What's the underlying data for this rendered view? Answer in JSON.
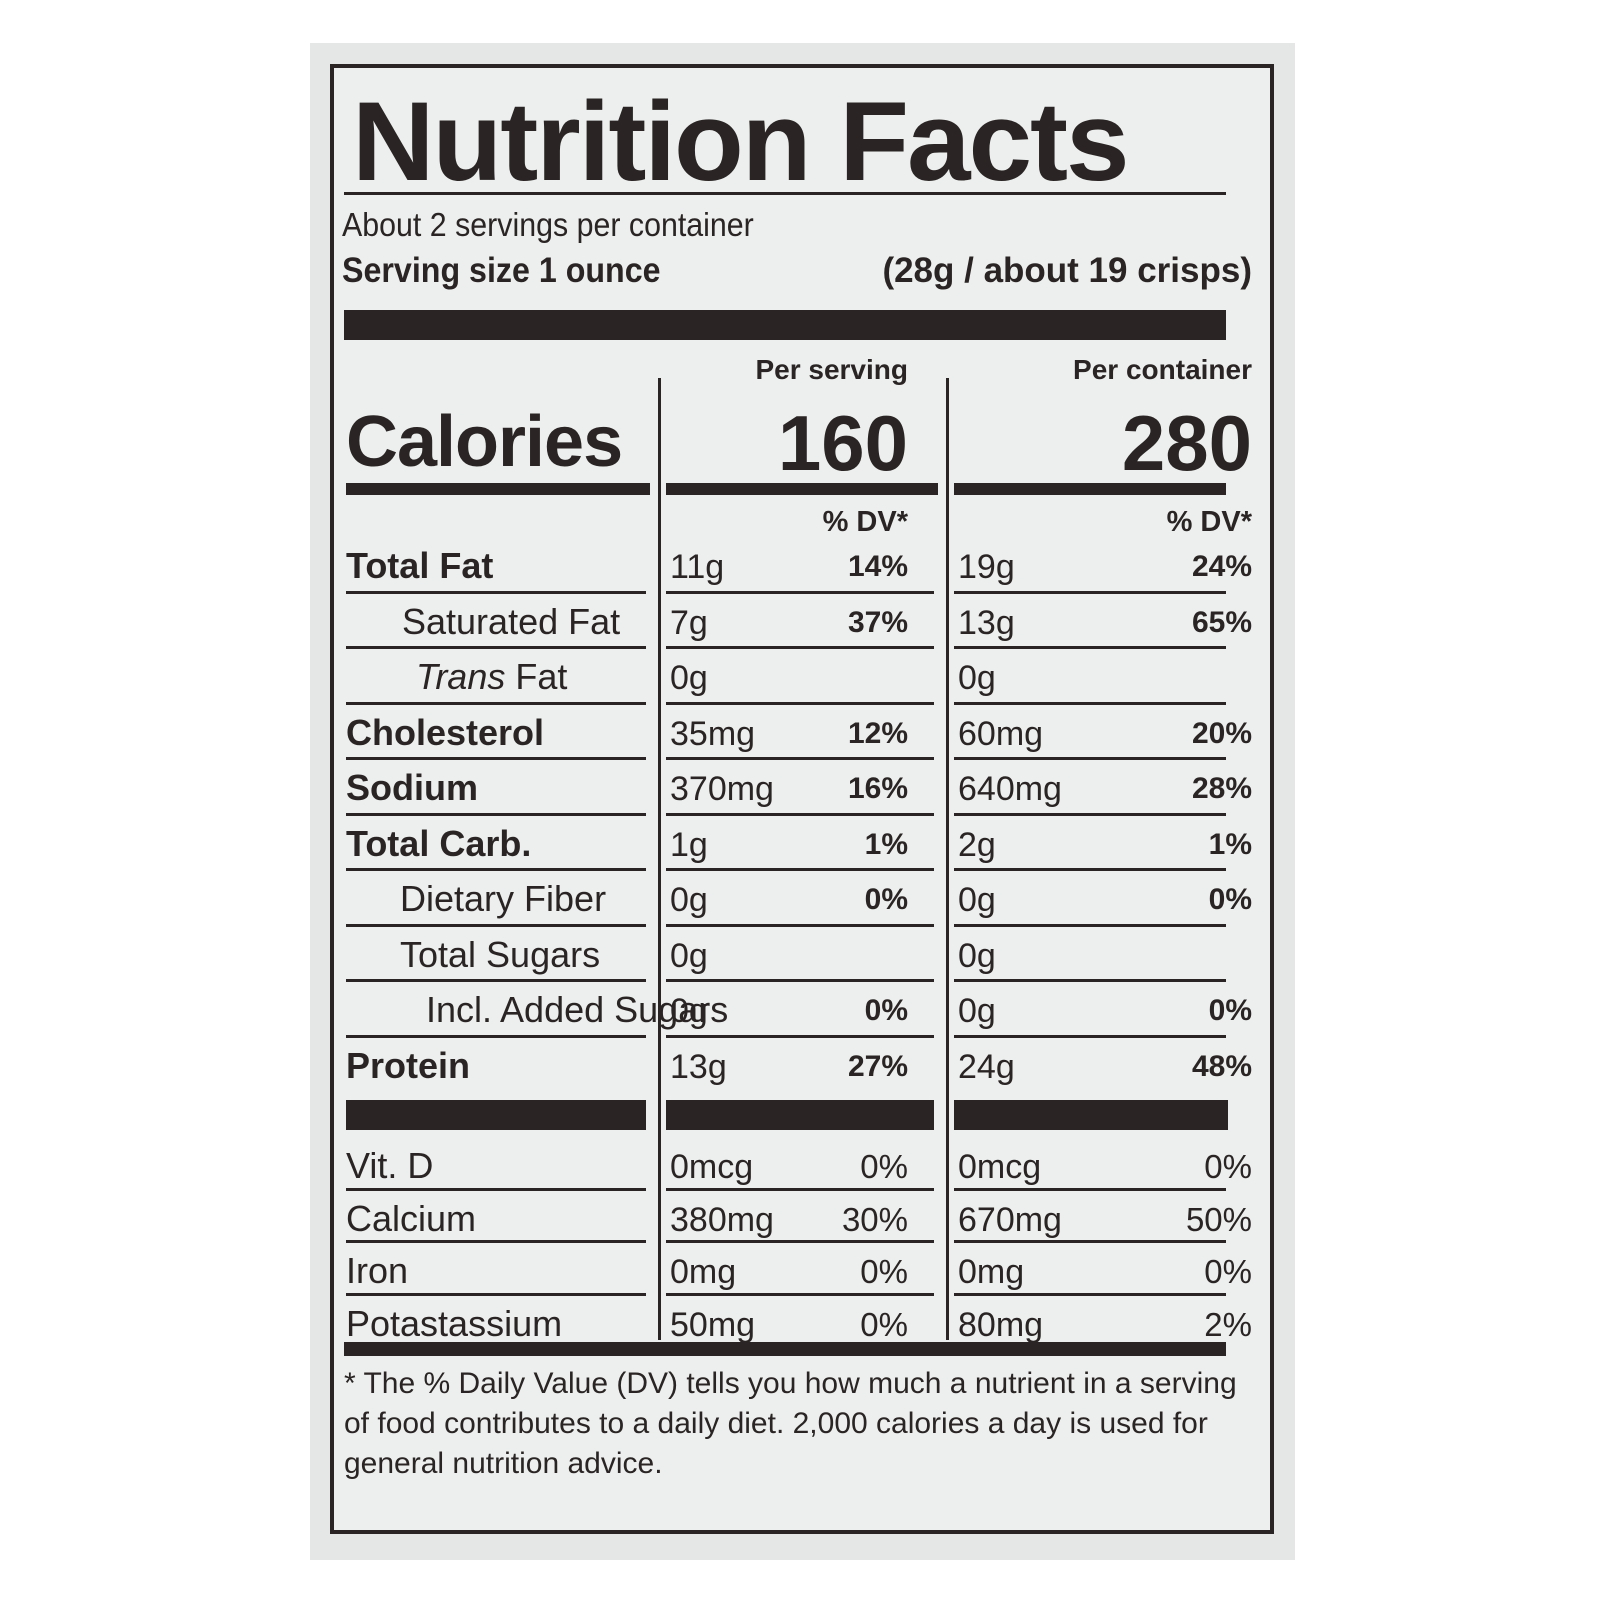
{
  "title": "Nutrition Facts",
  "servings_per_container": "About 2 servings per container",
  "serving_size_label": "Serving size 1 ounce",
  "serving_size_value": "(28g / about 19 crisps)",
  "columns": {
    "per_serving": "Per serving",
    "per_container": "Per container"
  },
  "calories": {
    "label": "Calories",
    "per_serving": "160",
    "per_container": "280"
  },
  "dv_header": "% DV*",
  "nutrients": [
    {
      "name": "Total Fat",
      "serving_amount": "11g",
      "serving_dv": "14%",
      "container_amount": "19g",
      "container_dv": "24%"
    },
    {
      "name": "Saturated Fat",
      "serving_amount": "7g",
      "serving_dv": "37%",
      "container_amount": "13g",
      "container_dv": "65%"
    },
    {
      "name": "Trans Fat",
      "serving_amount": "0g",
      "serving_dv": "",
      "container_amount": "0g",
      "container_dv": ""
    },
    {
      "name": "Cholesterol",
      "serving_amount": "35mg",
      "serving_dv": "12%",
      "container_amount": "60mg",
      "container_dv": "20%"
    },
    {
      "name": "Sodium",
      "serving_amount": "370mg",
      "serving_dv": "16%",
      "container_amount": "640mg",
      "container_dv": "28%"
    },
    {
      "name": "Total Carb.",
      "serving_amount": "1g",
      "serving_dv": "1%",
      "container_amount": "2g",
      "container_dv": "1%"
    },
    {
      "name": "Dietary Fiber",
      "serving_amount": "0g",
      "serving_dv": "0%",
      "container_amount": "0g",
      "container_dv": "0%"
    },
    {
      "name": "Total Sugars",
      "serving_amount": "0g",
      "serving_dv": "",
      "container_amount": "0g",
      "container_dv": ""
    },
    {
      "name": "Incl. Added Sugars",
      "serving_amount": "0g",
      "serving_dv": "0%",
      "container_amount": "0g",
      "container_dv": "0%"
    },
    {
      "name": "Protein",
      "serving_amount": "13g",
      "serving_dv": "27%",
      "container_amount": "24g",
      "container_dv": "48%"
    }
  ],
  "vitamins": [
    {
      "name": "Vit. D",
      "serving_amount": "0mcg",
      "serving_dv": "0%",
      "container_amount": "0mcg",
      "container_dv": "0%"
    },
    {
      "name": "Calcium",
      "serving_amount": "380mg",
      "serving_dv": "30%",
      "container_amount": "670mg",
      "container_dv": "50%"
    },
    {
      "name": "Iron",
      "serving_amount": "0mg",
      "serving_dv": "0%",
      "container_amount": "0mg",
      "container_dv": "0%"
    },
    {
      "name": "Potastassium",
      "serving_amount": "50mg",
      "serving_dv": "0%",
      "container_amount": "80mg",
      "container_dv": "2%"
    }
  ],
  "footnote": "* The % Daily Value (DV) tells you how much a nutrient in a serving of food contributes to a daily diet. 2,000 calories a day is used for general nutrition advice."
}
